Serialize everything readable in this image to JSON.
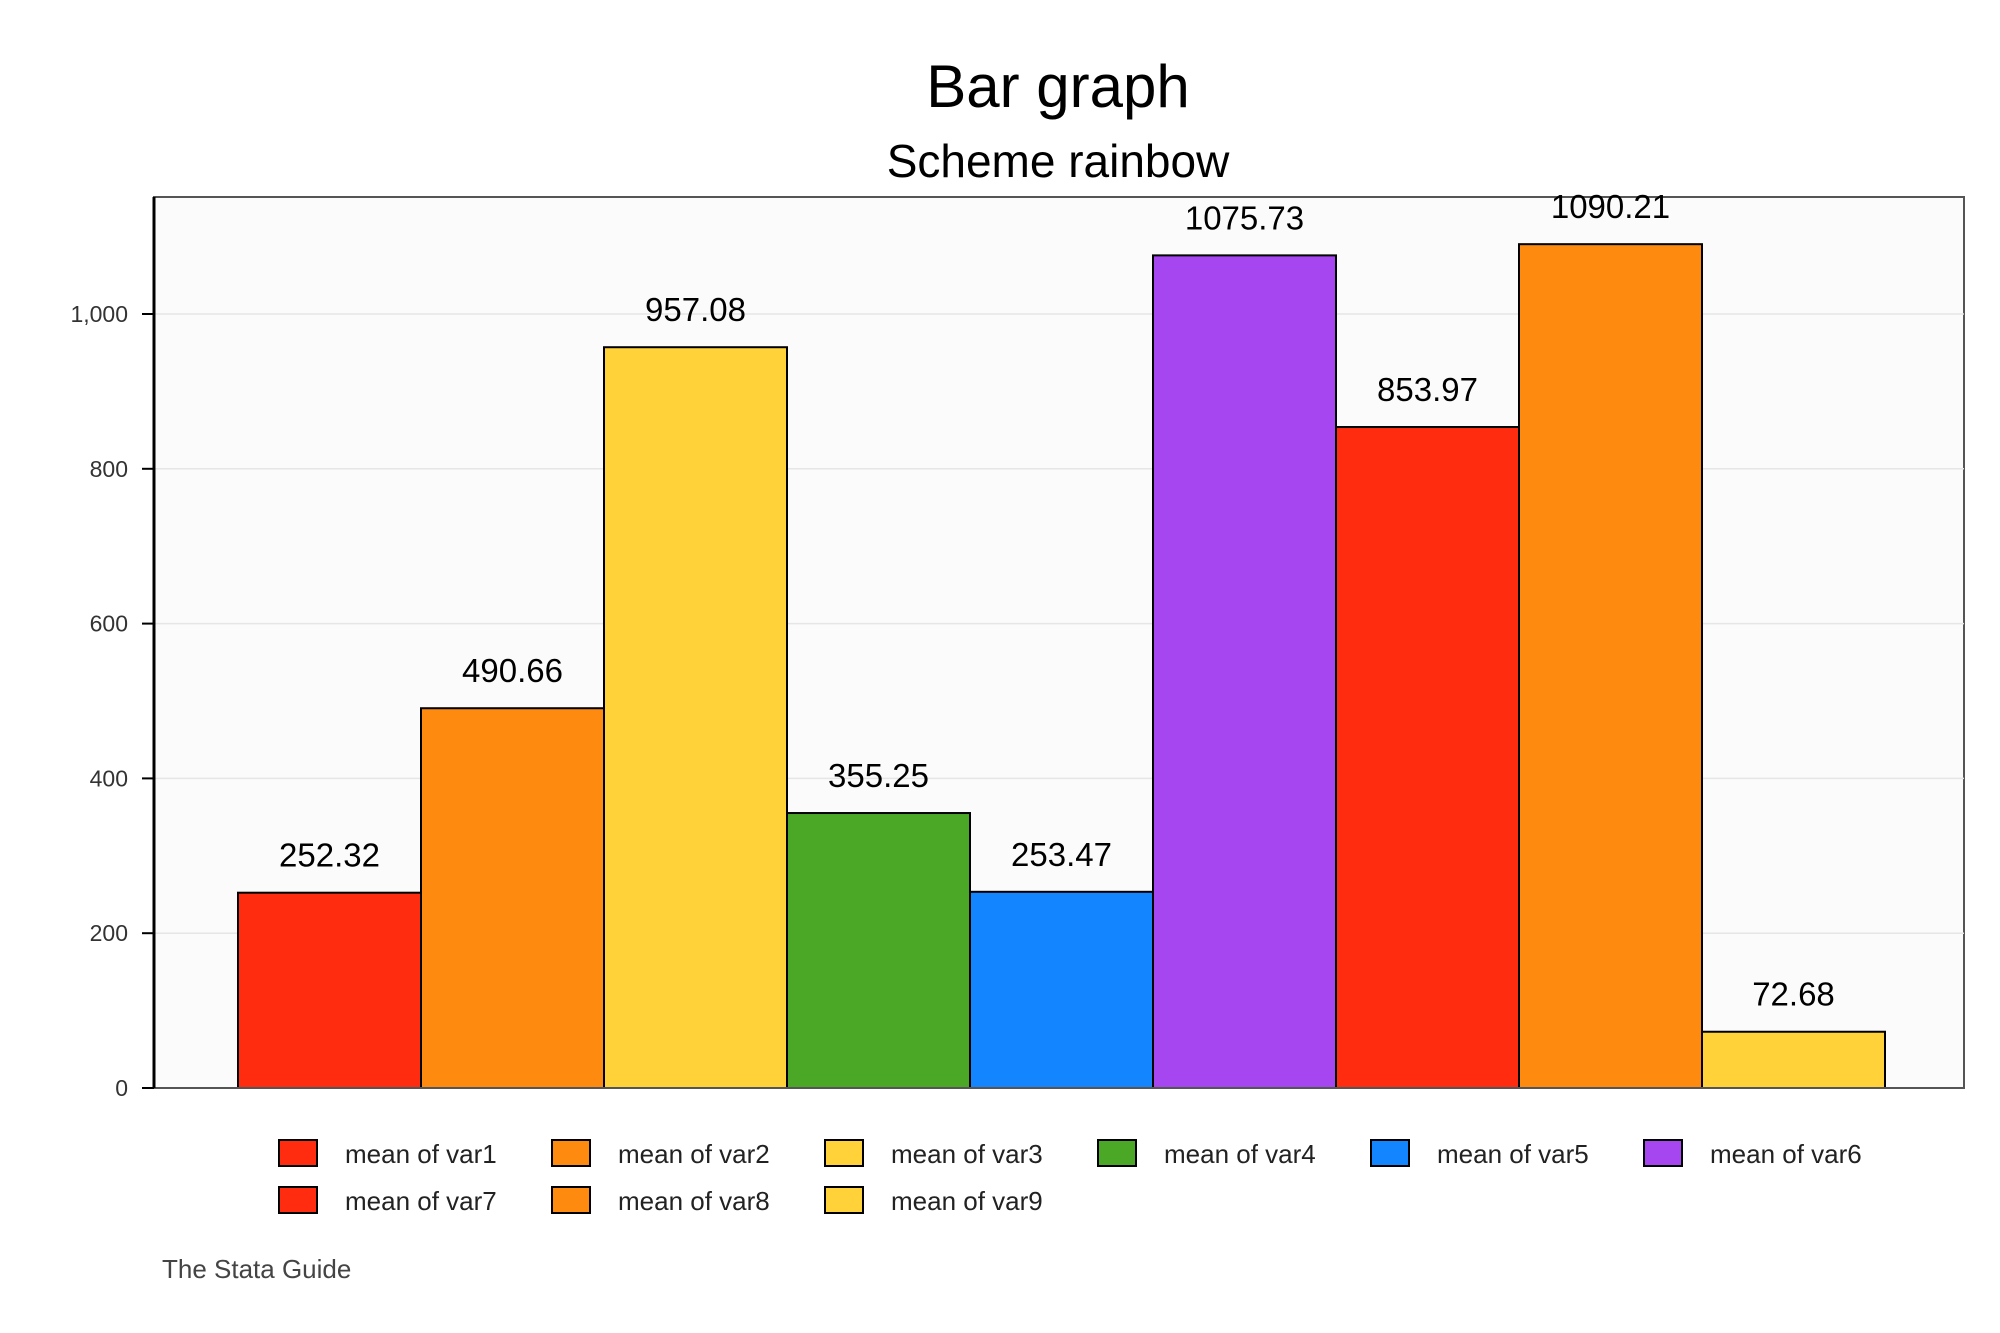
{
  "chart_data": {
    "type": "bar",
    "title": "Bar graph",
    "subtitle": "Scheme rainbow",
    "xlabel": "",
    "ylabel": "",
    "ylim": [
      0,
      1150
    ],
    "yticks": [
      0,
      200,
      400,
      600,
      800,
      1000
    ],
    "ytick_labels": [
      "0",
      "200",
      "400",
      "600",
      "800",
      "1,000"
    ],
    "grid": true,
    "legend_position": "bottom",
    "note": "The Stata Guide",
    "series": [
      {
        "name": "mean of var1",
        "value": 252.32,
        "label": "252.32",
        "color": "#ff2c10"
      },
      {
        "name": "mean of var2",
        "value": 490.66,
        "label": "490.66",
        "color": "#ff8a10"
      },
      {
        "name": "mean of var3",
        "value": 957.08,
        "label": "957.08",
        "color": "#ffd23a"
      },
      {
        "name": "mean of var4",
        "value": 355.25,
        "label": "355.25",
        "color": "#4ba826"
      },
      {
        "name": "mean of var5",
        "value": 253.47,
        "label": "253.47",
        "color": "#1385ff"
      },
      {
        "name": "mean of var6",
        "value": 1075.73,
        "label": "1075.73",
        "color": "#a546f0"
      },
      {
        "name": "mean of var7",
        "value": 853.97,
        "label": "853.97",
        "color": "#ff2c10"
      },
      {
        "name": "mean of var8",
        "value": 1090.21,
        "label": "1090.21",
        "color": "#ff8a10"
      },
      {
        "name": "mean of var9",
        "value": 72.68,
        "label": "72.68",
        "color": "#ffd23a"
      }
    ]
  },
  "colors": {
    "plot_background": "#fbfbfb",
    "gridline": "#e6e6e6",
    "axis": "#000000",
    "frame": "#555555"
  }
}
